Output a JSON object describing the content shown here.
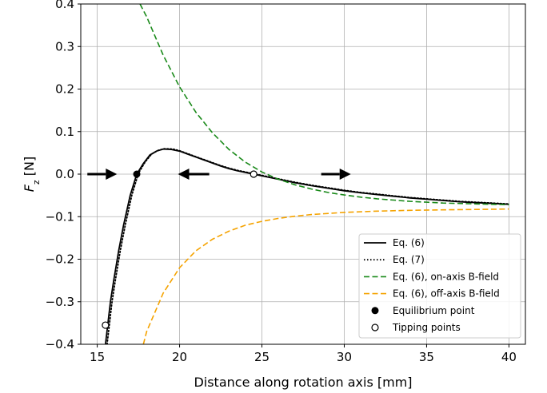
{
  "chart_data": {
    "type": "line",
    "xlabel": "Distance along rotation axis [mm]",
    "ylabel_main": "F",
    "ylabel_sub": "z",
    "ylabel_unit": " [N]",
    "xlim": [
      14,
      41
    ],
    "ylim": [
      -0.4,
      0.4
    ],
    "xticks": [
      15,
      20,
      25,
      30,
      35,
      40
    ],
    "yticks": [
      -0.4,
      -0.3,
      -0.2,
      -0.1,
      0.0,
      0.1,
      0.2,
      0.3,
      0.4
    ],
    "ytick_labels": [
      "−0.4",
      "−0.3",
      "−0.2",
      "−0.1",
      "0.0",
      "0.1",
      "0.2",
      "0.3",
      "0.4"
    ],
    "grid": true,
    "legend_position": "lower-right",
    "series": [
      {
        "name": "Eq. (6)",
        "color": "#000000",
        "style": "solid",
        "x": [
          15.5,
          15.8,
          16.0,
          16.3,
          16.6,
          17.0,
          17.4,
          17.8,
          18.2,
          18.6,
          19.0,
          19.5,
          20.0,
          20.5,
          21.0,
          21.5,
          22.0,
          22.5,
          23.0,
          23.5,
          24.0,
          24.5,
          25.0,
          26.0,
          27.0,
          28.0,
          29.0,
          30.0,
          31.0,
          32.0,
          33.0,
          34.0,
          35.0,
          36.0,
          37.0,
          38.0,
          39.0,
          40.0
        ],
        "y": [
          -0.4,
          -0.3,
          -0.25,
          -0.18,
          -0.12,
          -0.05,
          0.0,
          0.025,
          0.045,
          0.054,
          0.059,
          0.058,
          0.054,
          0.047,
          0.04,
          0.033,
          0.026,
          0.019,
          0.013,
          0.008,
          0.004,
          0.0,
          -0.004,
          -0.012,
          -0.02,
          -0.027,
          -0.033,
          -0.039,
          -0.044,
          -0.048,
          -0.052,
          -0.056,
          -0.059,
          -0.062,
          -0.065,
          -0.067,
          -0.069,
          -0.071
        ]
      },
      {
        "name": "Eq. (7)",
        "color": "#000000",
        "style": "dotted",
        "x": [
          15.6,
          15.9,
          16.1,
          16.4,
          16.7,
          17.1,
          17.5,
          17.9,
          18.3,
          18.7,
          19.1,
          19.6,
          20.0,
          20.5,
          21.0,
          21.5,
          22.0,
          22.5,
          23.0,
          23.5,
          24.0,
          24.5,
          25.0,
          26.0,
          27.0,
          28.0,
          29.0,
          30.0,
          31.0,
          32.0,
          33.0,
          34.0,
          35.0,
          36.0,
          37.0,
          38.0,
          39.0,
          40.0
        ],
        "y": [
          -0.4,
          -0.3,
          -0.25,
          -0.18,
          -0.12,
          -0.05,
          0.002,
          0.028,
          0.047,
          0.056,
          0.06,
          0.059,
          0.055,
          0.048,
          0.041,
          0.034,
          0.027,
          0.02,
          0.014,
          0.009,
          0.005,
          0.001,
          -0.003,
          -0.011,
          -0.019,
          -0.026,
          -0.032,
          -0.038,
          -0.043,
          -0.047,
          -0.051,
          -0.055,
          -0.058,
          -0.061,
          -0.064,
          -0.066,
          -0.068,
          -0.07
        ]
      },
      {
        "name": "Eq. (6), on-axis B-field",
        "color": "#1a8a1a",
        "style": "dashed",
        "x": [
          17.6,
          18.0,
          19.0,
          20.0,
          21.0,
          22.0,
          23.0,
          24.0,
          25.0,
          26.0,
          27.0,
          28.0,
          29.0,
          30.0,
          31.0,
          32.0,
          33.0,
          34.0,
          35.0,
          36.0,
          37.0,
          38.0,
          39.0,
          40.0
        ],
        "y": [
          0.4,
          0.37,
          0.28,
          0.205,
          0.145,
          0.097,
          0.058,
          0.028,
          0.005,
          -0.012,
          -0.025,
          -0.035,
          -0.043,
          -0.049,
          -0.054,
          -0.058,
          -0.061,
          -0.064,
          -0.066,
          -0.068,
          -0.069,
          -0.07,
          -0.071,
          -0.072
        ]
      },
      {
        "name": "Eq. (6), off-axis B-field",
        "color": "#f5a300",
        "style": "dashed",
        "x": [
          17.8,
          18.0,
          19.0,
          20.0,
          21.0,
          22.0,
          23.0,
          24.0,
          25.0,
          26.0,
          27.0,
          28.0,
          30.0,
          32.0,
          34.0,
          36.0,
          38.0,
          40.0
        ],
        "y": [
          -0.4,
          -0.37,
          -0.28,
          -0.22,
          -0.18,
          -0.153,
          -0.134,
          -0.12,
          -0.111,
          -0.104,
          -0.099,
          -0.095,
          -0.09,
          -0.087,
          -0.085,
          -0.084,
          -0.083,
          -0.082
        ]
      }
    ],
    "equilibrium_point": {
      "name": "Equilibrium point",
      "x": 17.4,
      "y": 0.0
    },
    "tipping_points": {
      "name": "Tipping points",
      "points": [
        [
          15.5,
          -0.355
        ],
        [
          24.5,
          0.0
        ]
      ]
    },
    "arrows": [
      {
        "x_from": 14.4,
        "x_to": 16.2,
        "y": 0.0
      },
      {
        "x_from": 21.8,
        "x_to": 19.9,
        "y": 0.0
      },
      {
        "x_from": 28.6,
        "x_to": 30.4,
        "y": 0.0
      }
    ]
  }
}
